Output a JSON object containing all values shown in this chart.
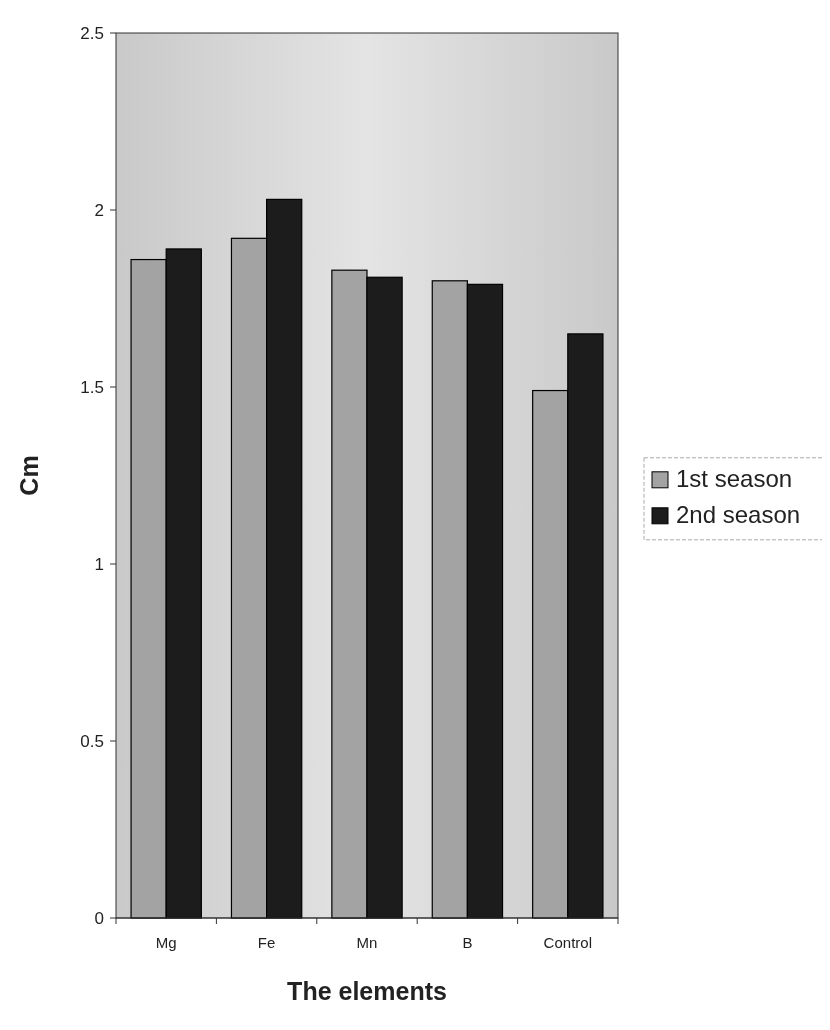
{
  "chart_data": {
    "type": "bar",
    "xlabel": "The elements",
    "ylabel": "Cm",
    "categories": [
      "Mg",
      "Fe",
      "Mn",
      "B",
      "Control"
    ],
    "series": [
      {
        "name": "1st season",
        "color": "#a3a3a3",
        "values": [
          1.86,
          1.92,
          1.83,
          1.8,
          1.49
        ]
      },
      {
        "name": "2nd season",
        "color": "#1c1c1c",
        "values": [
          1.89,
          2.03,
          1.81,
          1.79,
          1.65
        ]
      }
    ],
    "ylim": [
      0,
      2.5
    ],
    "yticks": [
      0,
      0.5,
      1,
      1.5,
      2,
      2.5
    ],
    "grid": false,
    "legend": "right"
  }
}
